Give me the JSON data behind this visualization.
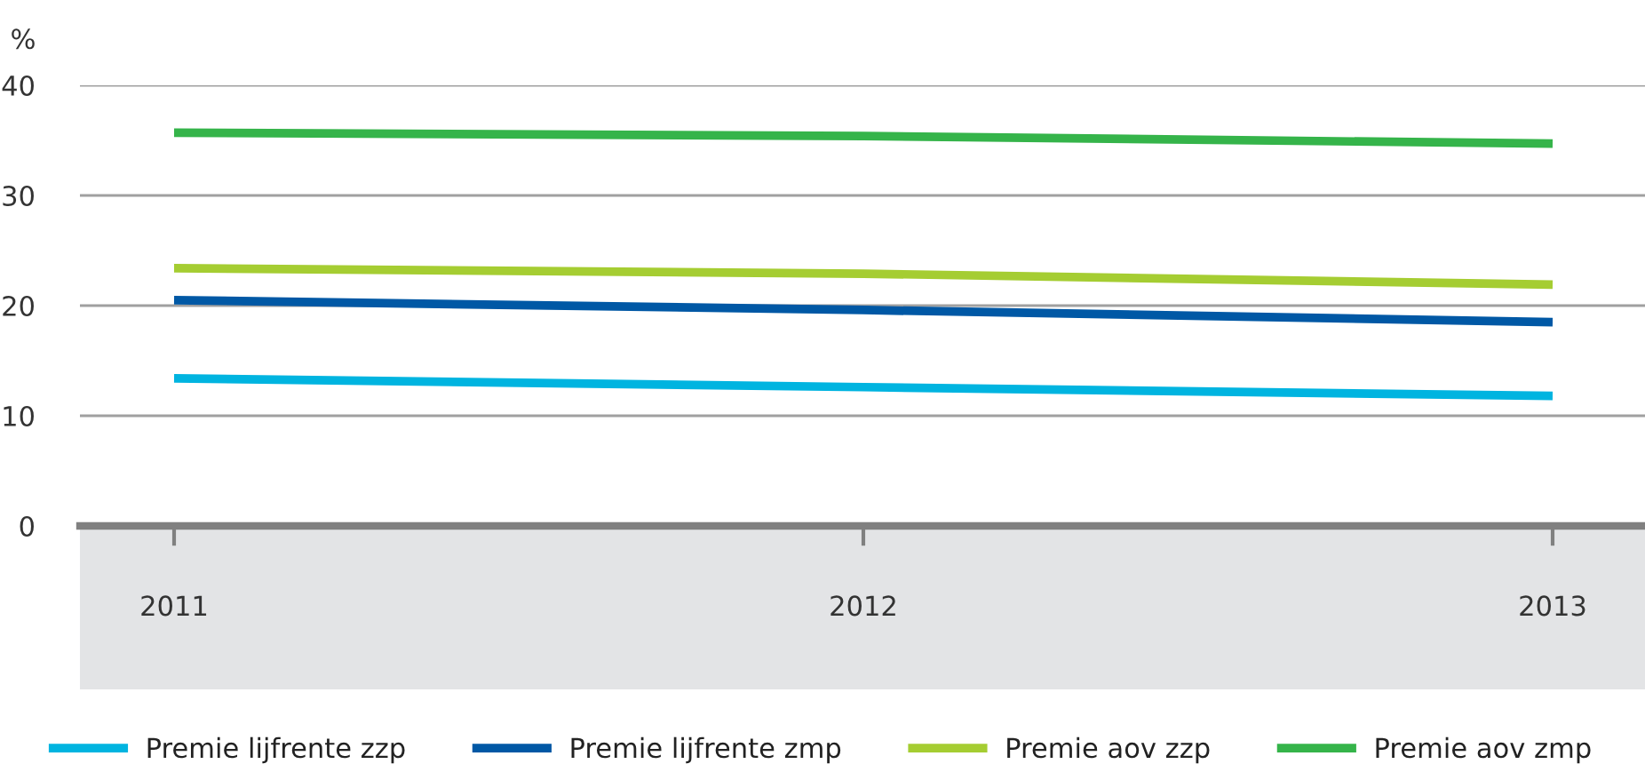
{
  "chart_data": {
    "type": "line",
    "ylabel": "%",
    "categories": [
      "2011",
      "2012",
      "2013"
    ],
    "series": [
      {
        "name": "Premie lijfrente zzp",
        "color": "#00b4e0",
        "values": [
          13.4,
          12.6,
          11.8
        ]
      },
      {
        "name": "Premie lijfrente zmp",
        "color": "#0058a5",
        "values": [
          20.5,
          19.6,
          18.5
        ]
      },
      {
        "name": "Premie aov zzp",
        "color": "#a5cd32",
        "values": [
          23.4,
          22.9,
          21.9
        ]
      },
      {
        "name": "Premie aov zmp",
        "color": "#35b44a",
        "values": [
          35.7,
          35.4,
          34.7
        ]
      }
    ],
    "ylim": [
      0,
      40
    ],
    "yticks": [
      0,
      10,
      20,
      30,
      40
    ],
    "grid": "y",
    "legend": "bottom",
    "marker": "none",
    "line_style": "solid"
  }
}
